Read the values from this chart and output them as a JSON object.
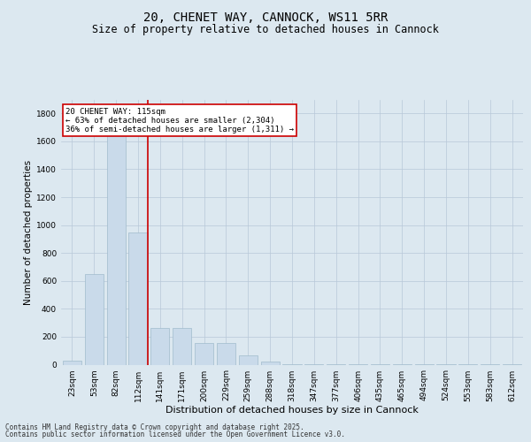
{
  "title_line1": "20, CHENET WAY, CANNOCK, WS11 5RR",
  "title_line2": "Size of property relative to detached houses in Cannock",
  "xlabel": "Distribution of detached houses by size in Cannock",
  "ylabel": "Number of detached properties",
  "categories": [
    "23sqm",
    "53sqm",
    "82sqm",
    "112sqm",
    "141sqm",
    "171sqm",
    "200sqm",
    "229sqm",
    "259sqm",
    "288sqm",
    "318sqm",
    "347sqm",
    "377sqm",
    "406sqm",
    "435sqm",
    "465sqm",
    "494sqm",
    "524sqm",
    "553sqm",
    "583sqm",
    "612sqm"
  ],
  "values": [
    30,
    650,
    1650,
    950,
    260,
    260,
    155,
    155,
    65,
    20,
    5,
    2,
    2,
    2,
    1,
    1,
    1,
    1,
    1,
    1,
    1
  ],
  "bar_color": "#c9daea",
  "bar_edge_color": "#a0bbcc",
  "vline_x_index": 3,
  "vline_color": "#cc0000",
  "annotation_box_text": "20 CHENET WAY: 115sqm\n← 63% of detached houses are smaller (2,304)\n36% of semi-detached houses are larger (1,311) →",
  "annotation_box_color": "#cc0000",
  "annotation_box_facecolor": "white",
  "ylim": [
    0,
    1900
  ],
  "yticks": [
    0,
    200,
    400,
    600,
    800,
    1000,
    1200,
    1400,
    1600,
    1800
  ],
  "grid_color": "#b8c8d8",
  "bg_color": "#dce8f0",
  "plot_bg_color": "#dce8f0",
  "footer_line1": "Contains HM Land Registry data © Crown copyright and database right 2025.",
  "footer_line2": "Contains public sector information licensed under the Open Government Licence v3.0.",
  "title_fontsize": 10,
  "subtitle_fontsize": 8.5,
  "axis_label_fontsize": 7.5,
  "tick_fontsize": 6.5,
  "annotation_fontsize": 6.5,
  "footer_fontsize": 5.5
}
